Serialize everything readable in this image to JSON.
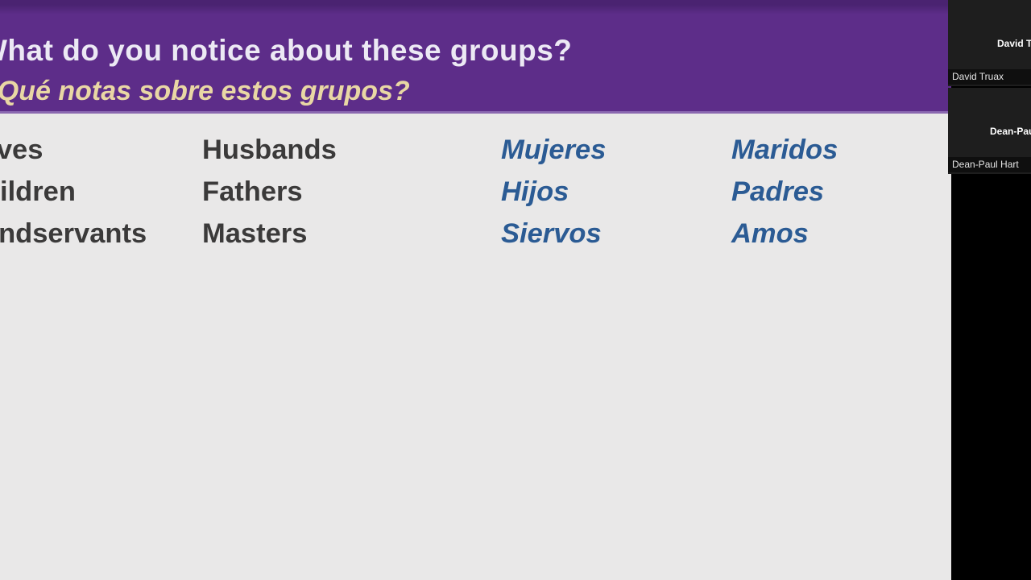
{
  "colors": {
    "header-bg": "#5d2d89",
    "slide-bg": "#e9e8e8",
    "accent-cream": "#e9d7a4",
    "accent-blue": "#2b5b94",
    "text-dark": "#3b3a3a"
  },
  "slide": {
    "header": {
      "title_en": "What do you notice about these groups?",
      "title_es": "¿Qué notas sobre estos grupos?"
    },
    "columns": [
      {
        "name": "english-left",
        "words": [
          "Wives",
          "Children",
          "Handservants"
        ]
      },
      {
        "name": "english-right",
        "words": [
          "Husbands",
          "Fathers",
          "Masters"
        ]
      },
      {
        "name": "spanish-left",
        "words": [
          "Mujeres",
          "Hijos",
          "Siervos"
        ]
      },
      {
        "name": "spanish-right",
        "words": [
          "Maridos",
          "Padres",
          "Amos"
        ]
      }
    ]
  },
  "participants": [
    {
      "big_name": "David Truax",
      "label": "David Truax"
    },
    {
      "big_name": "Dean-Paul Hart",
      "label": "Dean-Paul Hart"
    }
  ]
}
